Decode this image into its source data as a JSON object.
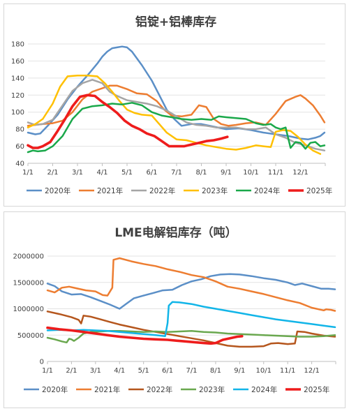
{
  "chart_data": [
    {
      "type": "line",
      "title": "铝锭+铝棒库存",
      "xlabel": "",
      "ylabel": "",
      "ylim": [
        40,
        180
      ],
      "yticks": [
        40,
        60,
        80,
        100,
        120,
        140,
        160,
        180
      ],
      "xticks": [
        "1/1",
        "2/1",
        "3/1",
        "4/1",
        "5/1",
        "6/1",
        "7/1",
        "8/1",
        "9/1",
        "10/1",
        "11/1",
        "12/1"
      ],
      "grid": true,
      "legend_position": "bottom",
      "series": [
        {
          "name": "2020年",
          "color": "#5b8fc7",
          "width": 2.5,
          "x": [
            0,
            0.3,
            0.5,
            0.8,
            1.2,
            1.6,
            2,
            2.4,
            2.8,
            3.0,
            3.2,
            3.4,
            3.6,
            3.8,
            4.0,
            4.2,
            4.6,
            5.0,
            5.3,
            5.6,
            5.9,
            6.2,
            6.6,
            7,
            7.5,
            8,
            8.5,
            9,
            9.5,
            10,
            10.5,
            11,
            11.3,
            11.6,
            11.8,
            11.97
          ],
          "y": [
            76,
            74,
            75,
            84,
            97,
            115,
            130,
            143,
            157,
            165,
            171,
            175,
            176,
            177,
            176,
            171,
            155,
            137,
            120,
            103,
            92,
            84,
            86,
            86,
            83,
            80,
            81,
            79,
            76,
            74,
            72,
            69,
            68,
            70,
            72,
            76
          ]
        },
        {
          "name": "2021年",
          "color": "#ed7d31",
          "width": 2.5,
          "x": [
            0,
            0.3,
            0.6,
            1,
            1.4,
            1.8,
            2.2,
            2.6,
            3,
            3.3,
            3.6,
            4,
            4.4,
            4.8,
            5.2,
            5.5,
            5.8,
            6.2,
            6.6,
            6.9,
            7.2,
            7.5,
            7.8,
            8.1,
            8.4,
            8.8,
            9.2,
            9.6,
            10,
            10.4,
            10.8,
            11.0,
            11.2,
            11.5,
            11.8,
            11.97
          ],
          "y": [
            84,
            85,
            86,
            87,
            90,
            100,
            115,
            124,
            128,
            131,
            131,
            127,
            122,
            121,
            113,
            103,
            96,
            95,
            97,
            108,
            106,
            92,
            86,
            84,
            85,
            87,
            88,
            85,
            98,
            113,
            118,
            120,
            116,
            108,
            96,
            88
          ]
        },
        {
          "name": "2022年",
          "color": "#a5a5a5",
          "width": 2.5,
          "x": [
            0,
            0.3,
            0.6,
            1,
            1.4,
            1.8,
            2.2,
            2.6,
            3,
            3.3,
            3.6,
            4,
            4.4,
            4.8,
            5.2,
            5.6,
            6,
            6.4,
            6.8,
            7.2,
            7.6,
            8,
            8.4,
            8.8,
            9.2,
            9.6,
            10,
            10.4,
            10.8,
            11.2,
            11.6,
            11.97
          ],
          "y": [
            88,
            85,
            86,
            91,
            108,
            125,
            134,
            138,
            134,
            124,
            119,
            114,
            112,
            110,
            107,
            102,
            95,
            88,
            85,
            84,
            82,
            82,
            82,
            80,
            80,
            82,
            74,
            70,
            64,
            61,
            57,
            55
          ]
        },
        {
          "name": "2023年",
          "color": "#ffc000",
          "width": 2.5,
          "x": [
            0,
            0.3,
            0.6,
            1,
            1.3,
            1.6,
            2,
            2.4,
            2.8,
            3.1,
            3.4,
            3.7,
            4,
            4.3,
            4.6,
            5,
            5.3,
            5.6,
            6,
            6.4,
            6.8,
            7.2,
            7.6,
            8,
            8.4,
            8.8,
            9.2,
            9.5,
            9.8,
            10,
            10.3,
            10.6,
            10.9,
            11.2,
            11.5,
            11.8
          ],
          "y": [
            82,
            86,
            92,
            110,
            130,
            142,
            143,
            143,
            142,
            134,
            124,
            113,
            103,
            99,
            97,
            96,
            86,
            76,
            68,
            67,
            64,
            61,
            59,
            57,
            56,
            58,
            61,
            60,
            59,
            77,
            79,
            78,
            71,
            62,
            55,
            51
          ]
        },
        {
          "name": "2024年",
          "color": "#1aa84a",
          "width": 2.5,
          "x": [
            0,
            0.2,
            0.4,
            0.7,
            1,
            1.4,
            1.8,
            2.2,
            2.6,
            3,
            3.4,
            3.8,
            4.2,
            4.6,
            5,
            5.4,
            5.8,
            6.2,
            6.6,
            7,
            7.4,
            7.7,
            8,
            8.4,
            8.8,
            9.2,
            9.5,
            9.8,
            10.0,
            10.2,
            10.4,
            10.6,
            10.8,
            11.0,
            11.2,
            11.4,
            11.6,
            11.8,
            11.97
          ],
          "y": [
            53,
            55,
            54,
            55,
            60,
            72,
            92,
            104,
            107,
            108,
            110,
            109,
            111,
            108,
            100,
            96,
            94,
            92,
            91,
            92,
            91,
            95,
            94,
            93,
            92,
            87,
            85,
            86,
            82,
            80,
            82,
            58,
            65,
            64,
            57,
            64,
            65,
            60,
            61
          ]
        },
        {
          "name": "2025年",
          "color": "#ee1c1c",
          "width": 3.6,
          "x": [
            0,
            0.2,
            0.4,
            0.6,
            0.9,
            1.2,
            1.5,
            1.8,
            2.1,
            2.4,
            2.7,
            3.0,
            3.3,
            3.6,
            3.9,
            4.2,
            4.5,
            4.8,
            5.1,
            5.4,
            5.7,
            6.0,
            6.3,
            6.6,
            6.9,
            7.2,
            7.5,
            7.8,
            8.05
          ],
          "y": [
            61,
            58,
            58,
            60,
            65,
            78,
            92,
            107,
            118,
            120,
            119,
            112,
            106,
            99,
            90,
            84,
            80,
            75,
            72,
            66,
            60,
            60,
            60,
            62,
            64,
            66,
            67,
            69,
            71
          ]
        }
      ]
    },
    {
      "type": "line",
      "title": "LME电解铝库存（吨）",
      "xlabel": "",
      "ylabel": "",
      "ylim": [
        0,
        2000000
      ],
      "yticks": [
        0,
        500000,
        1000000,
        1500000,
        2000000
      ],
      "xticks": [
        "1/1",
        "2/1",
        "3/1",
        "4/1",
        "5/1",
        "6/1",
        "7/1",
        "8/1",
        "9/1",
        "10/1",
        "11/1",
        "12/1"
      ],
      "grid": true,
      "legend_position": "bottom",
      "series": [
        {
          "name": "2020年",
          "color": "#5b8fc7",
          "width": 2.5,
          "x": [
            0,
            0.3,
            0.6,
            1,
            1.4,
            1.8,
            2.2,
            2.6,
            3.0,
            3.3,
            3.6,
            4.0,
            4.4,
            4.8,
            5.2,
            5.6,
            6,
            6.4,
            6.8,
            7.2,
            7.6,
            8,
            8.5,
            9,
            9.5,
            10,
            10.3,
            10.6,
            11,
            11.4,
            11.7,
            11.97
          ],
          "y": [
            1480000,
            1430000,
            1330000,
            1270000,
            1280000,
            1220000,
            1150000,
            1080000,
            1000000,
            1100000,
            1200000,
            1250000,
            1300000,
            1350000,
            1360000,
            1450000,
            1520000,
            1560000,
            1620000,
            1650000,
            1660000,
            1650000,
            1620000,
            1580000,
            1550000,
            1500000,
            1450000,
            1480000,
            1430000,
            1380000,
            1380000,
            1370000
          ]
        },
        {
          "name": "2021年",
          "color": "#ed7d31",
          "width": 2.5,
          "x": [
            0,
            0.3,
            0.6,
            0.9,
            1.2,
            1.6,
            2,
            2.3,
            2.5,
            2.7,
            2.75,
            3.0,
            3.5,
            4.0,
            4.5,
            5,
            5.5,
            6,
            6.5,
            7,
            7.5,
            8,
            8.5,
            9,
            9.5,
            10,
            10.5,
            11,
            11.5,
            11.6,
            11.8,
            11.97
          ],
          "y": [
            1350000,
            1310000,
            1400000,
            1420000,
            1390000,
            1350000,
            1330000,
            1260000,
            1250000,
            1400000,
            1930000,
            1960000,
            1900000,
            1850000,
            1810000,
            1750000,
            1700000,
            1640000,
            1600000,
            1520000,
            1420000,
            1380000,
            1330000,
            1280000,
            1220000,
            1160000,
            1110000,
            1020000,
            970000,
            990000,
            980000,
            960000
          ]
        },
        {
          "name": "2022年",
          "color": "#b5561d",
          "width": 2.5,
          "x": [
            0,
            0.5,
            1,
            1.3,
            1.4,
            1.5,
            1.8,
            2.2,
            2.6,
            3,
            3.5,
            4,
            4.5,
            5,
            5.5,
            6,
            6.5,
            7,
            7.5,
            8,
            8.5,
            9,
            9.3,
            9.6,
            10,
            10.3,
            10.4,
            10.7,
            11,
            11.5,
            11.97
          ],
          "y": [
            950000,
            900000,
            840000,
            790000,
            720000,
            870000,
            850000,
            800000,
            750000,
            700000,
            650000,
            600000,
            560000,
            520000,
            480000,
            440000,
            400000,
            350000,
            300000,
            280000,
            280000,
            290000,
            340000,
            350000,
            330000,
            340000,
            570000,
            560000,
            530000,
            490000,
            470000
          ]
        },
        {
          "name": "2023年",
          "color": "#6aa84f",
          "width": 2.5,
          "x": [
            0,
            0.3,
            0.6,
            0.8,
            0.9,
            1.0,
            1.1,
            1.3,
            1.5,
            1.8,
            2.2,
            2.6,
            3,
            3.5,
            4,
            4.5,
            5,
            5.5,
            6,
            6.5,
            7,
            7.5,
            8,
            8.5,
            9,
            9.5,
            10,
            10.5,
            11,
            11.5,
            11.97
          ],
          "y": [
            450000,
            420000,
            380000,
            360000,
            430000,
            420000,
            390000,
            450000,
            530000,
            560000,
            570000,
            580000,
            580000,
            570000,
            560000,
            570000,
            560000,
            570000,
            580000,
            560000,
            550000,
            530000,
            520000,
            510000,
            500000,
            490000,
            480000,
            470000,
            470000,
            480000,
            500000
          ]
        },
        {
          "name": "2024年",
          "color": "#12b5e8",
          "width": 2.5,
          "x": [
            0,
            0.5,
            1,
            1.5,
            2,
            2.5,
            3,
            3.5,
            4,
            4.5,
            4.9,
            5.0,
            5.05,
            5.2,
            5.5,
            6,
            6.5,
            7,
            7.5,
            8,
            8.5,
            9,
            9.5,
            10,
            10.5,
            11,
            11.5,
            11.97
          ],
          "y": [
            590000,
            600000,
            590000,
            600000,
            590000,
            580000,
            560000,
            540000,
            520000,
            500000,
            480000,
            730000,
            1060000,
            1130000,
            1120000,
            1090000,
            1040000,
            1000000,
            960000,
            920000,
            880000,
            840000,
            800000,
            770000,
            740000,
            710000,
            680000,
            650000
          ]
        },
        {
          "name": "2025年",
          "color": "#ee1c1c",
          "width": 3.6,
          "x": [
            0,
            0.5,
            1,
            1.5,
            2,
            2.5,
            3,
            3.5,
            4,
            4.5,
            5,
            5.5,
            6,
            6.5,
            6.8,
            7.0,
            7.3,
            7.6,
            7.9,
            8.1
          ],
          "y": [
            640000,
            610000,
            590000,
            560000,
            530000,
            500000,
            470000,
            450000,
            430000,
            420000,
            410000,
            390000,
            370000,
            350000,
            340000,
            350000,
            410000,
            440000,
            470000,
            480000
          ]
        }
      ]
    }
  ]
}
